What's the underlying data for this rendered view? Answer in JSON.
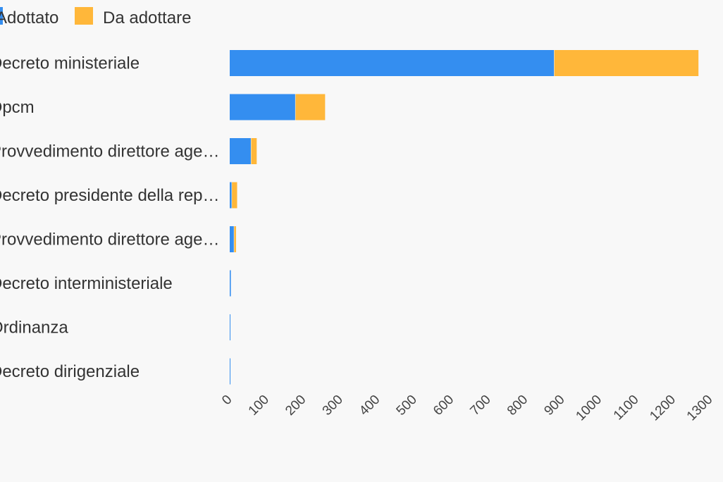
{
  "chart_data": {
    "type": "bar",
    "orientation": "horizontal",
    "stacked": true,
    "categories": [
      "Decreto ministeriale",
      "Dpcm",
      "Provvedimento direttore age…",
      "Decreto presidente della rep…",
      "Provvedimento direttore age…",
      "Decreto interministeriale",
      "Ordinanza",
      "Decreto dirigenziale"
    ],
    "series": [
      {
        "name": "Adottato",
        "color": "#348ef0",
        "values": [
          878,
          178,
          58,
          6,
          12,
          3,
          1,
          1
        ]
      },
      {
        "name": "Da adottare",
        "color": "#ffb73a",
        "values": [
          390,
          80,
          15,
          14,
          5,
          0,
          0,
          0
        ]
      }
    ],
    "xlim": [
      0,
      1300
    ],
    "xticks": [
      0,
      100,
      200,
      300,
      400,
      500,
      600,
      700,
      800,
      900,
      1000,
      1100,
      1200,
      1300
    ],
    "xtick_labels": [
      "0",
      "100",
      "200",
      "300",
      "400",
      "500",
      "600",
      "700",
      "800",
      "900",
      "1000",
      "1100",
      "1200",
      "1300"
    ],
    "legend_position": "top-left",
    "grid": false
  }
}
